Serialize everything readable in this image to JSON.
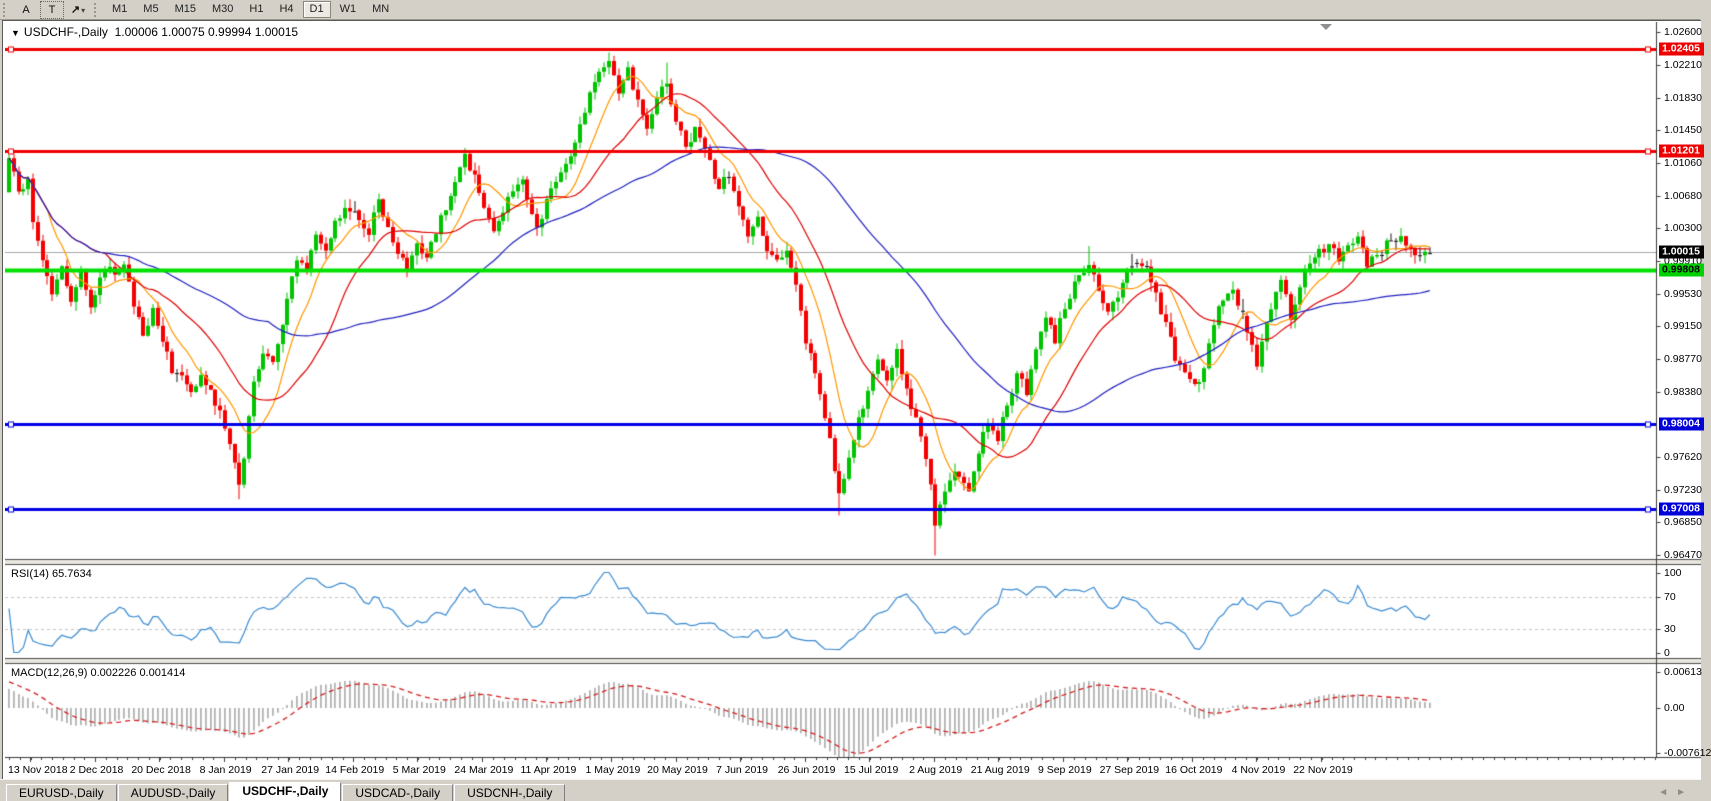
{
  "toolbar": {
    "a_label": "A",
    "t_label": "T",
    "arrows_glyph": "↗",
    "caret": "▾",
    "timeframes": [
      "M1",
      "M5",
      "M15",
      "M30",
      "H1",
      "H4",
      "D1",
      "W1",
      "MN"
    ],
    "active_timeframe": "D1"
  },
  "chart_header": {
    "symbol": "USDCHF-,Daily",
    "dropdown_glyph": "▼",
    "ohlc": "1.00006 1.00075 0.99994 1.00015"
  },
  "tabs": {
    "items": [
      "EURUSD-,Daily",
      "AUDUSD-,Daily",
      "USDCHF-,Daily",
      "USDCAD-,Daily",
      "USDCNH-,Daily"
    ],
    "active_index": 2,
    "scroll_left": "◄",
    "scroll_right": "►"
  },
  "chart_data": {
    "type": "candlestick",
    "symbol": "USDCHF",
    "period": "Daily",
    "ohlc_current": {
      "open": 1.00006,
      "high": 1.00075,
      "low": 0.99994,
      "close": 1.00015
    },
    "colors": {
      "candle_up": "#00c400",
      "candle_down": "#f40000",
      "doji": "#1a1a1a",
      "current_price_line": "#a8a8a8",
      "histogram": "#b4b4b4",
      "signal_line": "#d42020",
      "rsi_line": "#3c8cd2",
      "level_dash": "#c6c6c6"
    },
    "y_ticks": [
      "1.02600",
      "1.02210",
      "1.01830",
      "1.01450",
      "1.01060",
      "1.00680",
      "1.00300",
      "0.99910",
      "0.99530",
      "0.99150",
      "0.98770",
      "0.98380",
      "0.97620",
      "0.97230",
      "0.96850",
      "0.96470"
    ],
    "x_dates": [
      "13 Nov 2018",
      "2 Dec 2018",
      "20 Dec 2018",
      "8 Jan 2019",
      "27 Jan 2019",
      "14 Feb 2019",
      "5 Mar 2019",
      "24 Mar 2019",
      "11 Apr 2019",
      "1 May 2019",
      "20 May 2019",
      "7 Jun 2019",
      "26 Jun 2019",
      "15 Jul 2019",
      "2 Aug 2019",
      "21 Aug 2019",
      "9 Sep 2019",
      "27 Sep 2019",
      "16 Oct 2019",
      "4 Nov 2019",
      "22 Nov 2019"
    ],
    "h_lines": [
      {
        "price": 1.02405,
        "badge": "1.02405",
        "color": "#f00000",
        "badge_bg": "#ee0000",
        "badge_fg": "#ffffff",
        "width": 3,
        "squares": true
      },
      {
        "price": 1.01201,
        "badge": "1.01201",
        "color": "#f00000",
        "badge_bg": "#ee0000",
        "badge_fg": "#ffffff",
        "width": 3,
        "squares": true
      },
      {
        "price": 0.99808,
        "badge": "0.99808",
        "color": "#00e000",
        "badge_bg": "#00d200",
        "badge_fg": "#000000",
        "width": 4,
        "squares": false
      },
      {
        "price": 0.98004,
        "badge": "0.98004",
        "color": "#0000e8",
        "badge_bg": "#0000d8",
        "badge_fg": "#ffffff",
        "width": 3,
        "squares": true
      },
      {
        "price": 0.97008,
        "badge": "0.97008",
        "color": "#0000e8",
        "badge_bg": "#0000d8",
        "badge_fg": "#ffffff",
        "width": 3,
        "squares": true
      }
    ],
    "current_price": {
      "value": 1.00015,
      "badge": "1.00015",
      "badge_bg": "#000000",
      "badge_fg": "#ffffff"
    },
    "moving_averages": [
      {
        "period": 9,
        "color": "#ff9800"
      },
      {
        "period": 21,
        "color": "#e00000"
      },
      {
        "period": 55,
        "color": "#2020c0"
      }
    ],
    "rsi": {
      "label": "RSI(14)",
      "value": "65.7634",
      "levels": [
        70,
        30
      ],
      "axis": [
        "100",
        "70",
        "30",
        "0"
      ]
    },
    "macd": {
      "label": "MACD(12,26,9)",
      "value_main": "0.002226",
      "value_signal": "0.001414",
      "axis_top": "0.00613",
      "axis_zero": "0.00",
      "axis_bottom": "-0.007612"
    },
    "candles": {
      "count": 297,
      "waypoints": [
        [
          0,
          1.0112
        ],
        [
          2,
          1.007
        ],
        [
          4,
          1.0088
        ],
        [
          5,
          1.004
        ],
        [
          7,
          0.9992
        ],
        [
          9,
          0.9955
        ],
        [
          11,
          0.9982
        ],
        [
          13,
          0.9946
        ],
        [
          15,
          0.9976
        ],
        [
          17,
          0.9938
        ],
        [
          20,
          0.9986
        ],
        [
          22,
          0.9974
        ],
        [
          24,
          0.999
        ],
        [
          26,
          0.9942
        ],
        [
          28,
          0.9903
        ],
        [
          30,
          0.9933
        ],
        [
          32,
          0.9896
        ],
        [
          34,
          0.9864
        ],
        [
          36,
          0.9852
        ],
        [
          38,
          0.9836
        ],
        [
          40,
          0.986
        ],
        [
          43,
          0.9824
        ],
        [
          45,
          0.98
        ],
        [
          46,
          0.9776
        ],
        [
          48,
          0.9729
        ],
        [
          49,
          0.9762
        ],
        [
          51,
          0.9846
        ],
        [
          53,
          0.9888
        ],
        [
          55,
          0.9873
        ],
        [
          57,
          0.9921
        ],
        [
          59,
          0.9969
        ],
        [
          60,
          0.9997
        ],
        [
          62,
          0.9983
        ],
        [
          64,
          1.0018
        ],
        [
          66,
          0.9999
        ],
        [
          68,
          1.0037
        ],
        [
          70,
          1.0055
        ],
        [
          73,
          1.0041
        ],
        [
          75,
          1.0023
        ],
        [
          77,
          1.0066
        ],
        [
          79,
          1.0031
        ],
        [
          81,
          1.0001
        ],
        [
          83,
          0.9986
        ],
        [
          85,
          1.0012
        ],
        [
          87,
          0.9993
        ],
        [
          89,
          1.0028
        ],
        [
          91,
          1.0052
        ],
        [
          93,
          1.0082
        ],
        [
          95,
          1.0117
        ],
        [
          97,
          1.0088
        ],
        [
          99,
          1.0053
        ],
        [
          101,
          1.0029
        ],
        [
          103,
          1.005
        ],
        [
          105,
          1.0078
        ],
        [
          107,
          1.0088
        ],
        [
          109,
          1.0043
        ],
        [
          110,
          1.0029
        ],
        [
          112,
          1.0062
        ],
        [
          114,
          1.0088
        ],
        [
          117,
          1.0118
        ],
        [
          119,
          1.0148
        ],
        [
          121,
          1.0185
        ],
        [
          123,
          1.0212
        ],
        [
          125,
          1.0226
        ],
        [
          127,
          1.0193
        ],
        [
          129,
          1.0218
        ],
        [
          131,
          1.0176
        ],
        [
          133,
          1.0143
        ],
        [
          135,
          1.0188
        ],
        [
          137,
          1.0202
        ],
        [
          139,
          1.0159
        ],
        [
          141,
          1.0123
        ],
        [
          143,
          1.0148
        ],
        [
          145,
          1.0118
        ],
        [
          148,
          1.0079
        ],
        [
          150,
          1.0095
        ],
        [
          152,
          1.0059
        ],
        [
          154,
          1.0019
        ],
        [
          156,
          1.0042
        ],
        [
          158,
          1.0003
        ],
        [
          160,
          0.9989
        ],
        [
          162,
          1.0003
        ],
        [
          164,
          0.9963
        ],
        [
          166,
          0.9899
        ],
        [
          169,
          0.9839
        ],
        [
          171,
          0.9779
        ],
        [
          173,
          0.9719
        ],
        [
          175,
          0.9759
        ],
        [
          177,
          0.9803
        ],
        [
          179,
          0.9843
        ],
        [
          181,
          0.9876
        ],
        [
          183,
          0.9849
        ],
        [
          185,
          0.9886
        ],
        [
          187,
          0.9839
        ],
        [
          190,
          0.9789
        ],
        [
          192,
          0.9729
        ],
        [
          193,
          0.9681
        ],
        [
          195,
          0.9723
        ],
        [
          197,
          0.9749
        ],
        [
          200,
          0.9719
        ],
        [
          202,
          0.9769
        ],
        [
          204,
          0.9806
        ],
        [
          206,
          0.9783
        ],
        [
          208,
          0.9823
        ],
        [
          210,
          0.9859
        ],
        [
          212,
          0.9839
        ],
        [
          214,
          0.9883
        ],
        [
          216,
          0.9923
        ],
        [
          218,
          0.9899
        ],
        [
          220,
          0.9939
        ],
        [
          222,
          0.9963
        ],
        [
          225,
          0.9991
        ],
        [
          227,
          0.9959
        ],
        [
          229,
          0.9929
        ],
        [
          231,
          0.9953
        ],
        [
          233,
          0.9976
        ],
        [
          235,
          0.9993
        ],
        [
          237,
          0.9983
        ],
        [
          239,
          0.9949
        ],
        [
          241,
          0.9919
        ],
        [
          243,
          0.9879
        ],
        [
          246,
          0.9851
        ],
        [
          248,
          0.9846
        ],
        [
          250,
          0.9893
        ],
        [
          252,
          0.9939
        ],
        [
          255,
          0.9959
        ],
        [
          257,
          0.9926
        ],
        [
          259,
          0.9889
        ],
        [
          260,
          0.9869
        ],
        [
          262,
          0.9919
        ],
        [
          265,
          0.9973
        ],
        [
          267,
          0.9926
        ],
        [
          269,
          0.9963
        ],
        [
          271,
          0.9991
        ],
        [
          273,
          1.0003
        ],
        [
          275,
          1.0011
        ],
        [
          277,
          0.9993
        ],
        [
          279,
          1.0006
        ],
        [
          281,
          1.0015
        ],
        [
          283,
          0.9989
        ],
        [
          285,
          0.9999
        ],
        [
          287,
          1.0011
        ],
        [
          290,
          1.0021
        ],
        [
          292,
          1.0003
        ],
        [
          294,
          0.9993
        ],
        [
          296,
          1.00015
        ]
      ],
      "spikes": {
        "0": {
          "open": 1.0072,
          "high": 1.0119
        },
        "48": {
          "low": 0.9712
        },
        "95": {
          "high": 1.0124
        },
        "125": {
          "high": 1.0236
        },
        "137": {
          "high": 1.0224
        },
        "173": {
          "low": 0.9693
        },
        "193": {
          "low": 0.9646
        },
        "225": {
          "high": 1.0009
        },
        "290": {
          "high": 1.003
        },
        "296": {
          "open": 1.00006,
          "high": 1.00075,
          "low": 0.99994,
          "close": 1.00015
        }
      },
      "dojis": [
        234,
        257,
        289
      ]
    }
  }
}
